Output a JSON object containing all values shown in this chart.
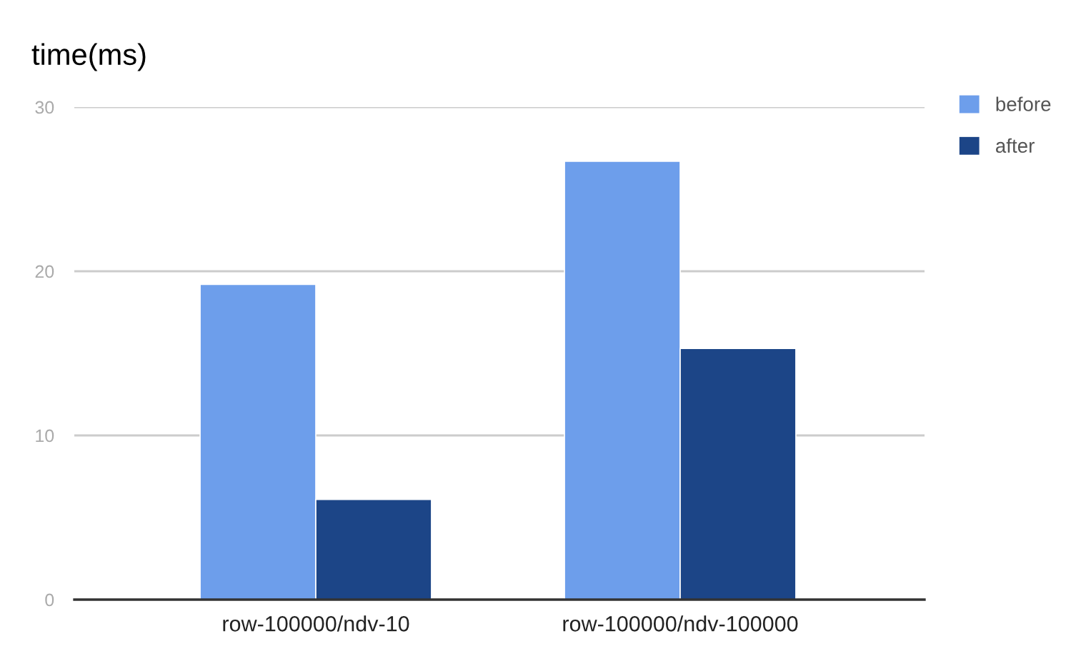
{
  "chart_data": {
    "type": "bar",
    "title": "time(ms)",
    "categories": [
      "row-100000/ndv-10",
      "row-100000/ndv-100000"
    ],
    "series": [
      {
        "name": "before",
        "color": "#6d9eeb",
        "values": [
          19.2,
          26.7
        ]
      },
      {
        "name": "after",
        "color": "#1c4587",
        "values": [
          6.1,
          15.3
        ]
      }
    ],
    "ylim": [
      0,
      30
    ],
    "yticks": [
      0,
      10,
      20,
      30
    ],
    "grid": "y",
    "legend": "top right"
  }
}
